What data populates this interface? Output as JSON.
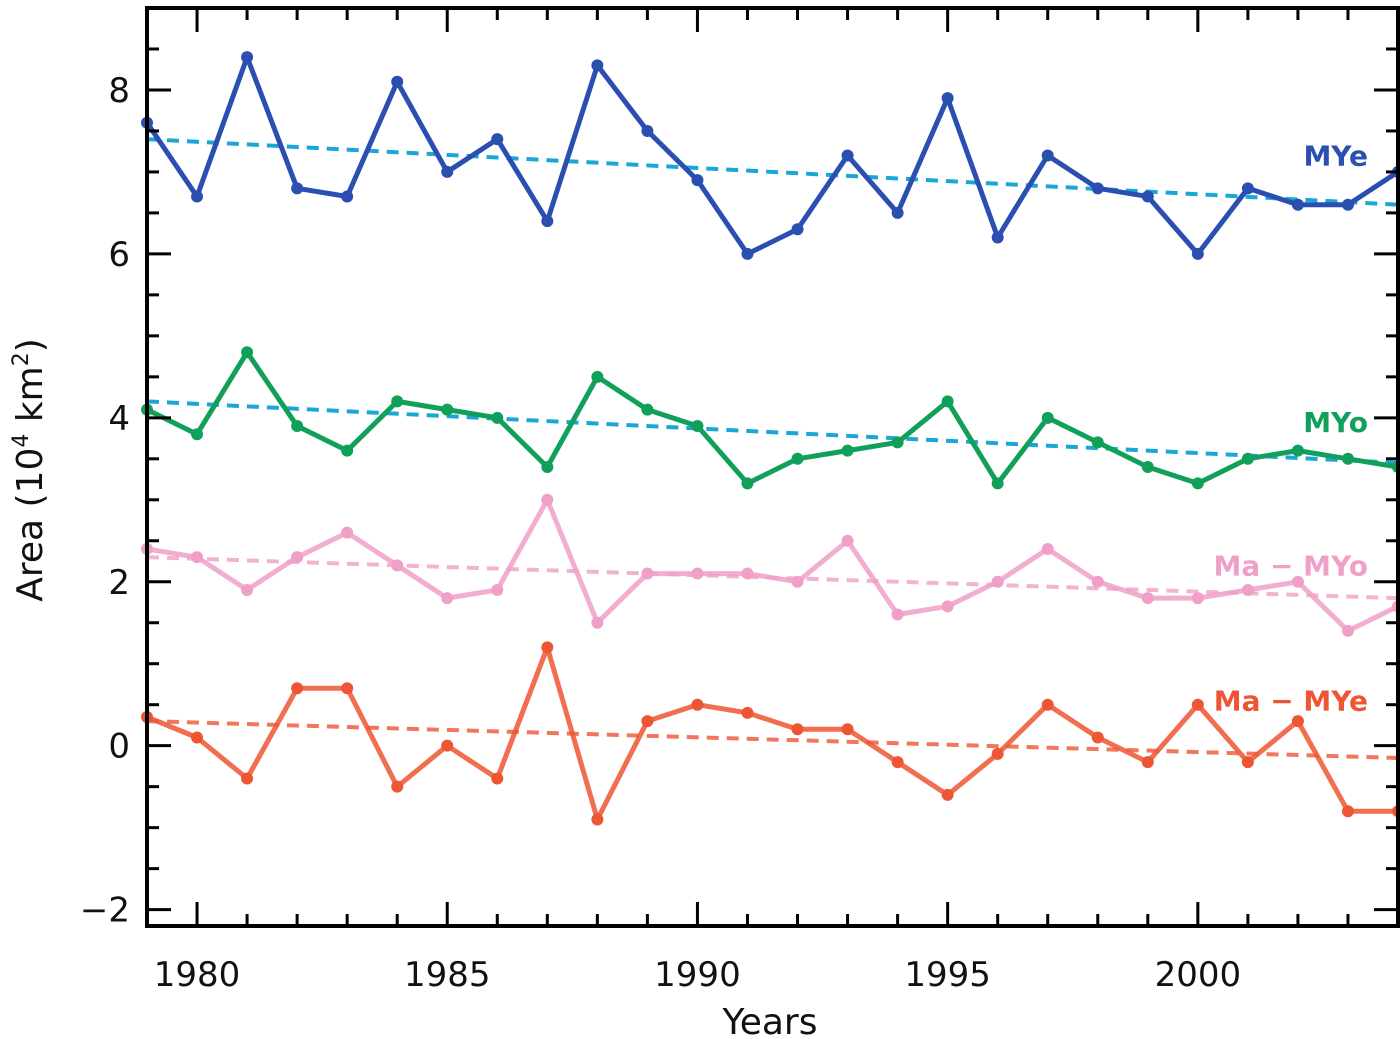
{
  "chart_data": {
    "type": "line",
    "xlabel": "Years",
    "ylabel_main": "Area (10",
    "ylabel_exp1": "4",
    "ylabel_unit": " km",
    "ylabel_exp2": "2",
    "ylabel_close": ")",
    "xlim": [
      1979,
      2004
    ],
    "ylim": [
      -2.2,
      9
    ],
    "xticks": [
      1980,
      1985,
      1990,
      1995,
      2000
    ],
    "yticks": [
      -2,
      0,
      2,
      4,
      6,
      8
    ],
    "ytick_labels": [
      "−2",
      "0",
      "2",
      "4",
      "6",
      "8"
    ],
    "grid": false,
    "series": [
      {
        "name": "MYe",
        "color": "#2a4fb0",
        "trend_color": "#1aa6d6",
        "x": [
          1979,
          1980,
          1981,
          1982,
          1983,
          1984,
          1985,
          1986,
          1987,
          1988,
          1989,
          1990,
          1991,
          1992,
          1993,
          1994,
          1995,
          1996,
          1997,
          1998,
          1999,
          2000,
          2001,
          2002,
          2003,
          2004
        ],
        "y": [
          7.6,
          6.7,
          8.4,
          6.8,
          6.7,
          8.1,
          7.0,
          7.4,
          6.4,
          8.3,
          7.5,
          6.9,
          6.0,
          6.3,
          7.2,
          6.5,
          7.9,
          6.2,
          7.2,
          6.8,
          6.7,
          6.0,
          6.8,
          6.6,
          6.6,
          7.0
        ],
        "trend": [
          7.4,
          6.6
        ]
      },
      {
        "name": "MYo",
        "color": "#10a05a",
        "trend_color": "#1aa6d6",
        "x": [
          1979,
          1980,
          1981,
          1982,
          1983,
          1984,
          1985,
          1986,
          1987,
          1988,
          1989,
          1990,
          1991,
          1992,
          1993,
          1994,
          1995,
          1996,
          1997,
          1998,
          1999,
          2000,
          2001,
          2002,
          2003,
          2004
        ],
        "y": [
          4.1,
          3.8,
          4.8,
          3.9,
          3.6,
          4.2,
          4.1,
          4.0,
          3.4,
          4.5,
          4.1,
          3.9,
          3.2,
          3.5,
          3.6,
          3.7,
          4.2,
          3.2,
          4.0,
          3.7,
          3.4,
          3.2,
          3.5,
          3.6,
          3.5,
          3.4
        ],
        "trend": [
          4.2,
          3.45
        ]
      },
      {
        "name": "Ma − MYo",
        "color": "#f0a0c8",
        "trend_color": "#f0a0c8",
        "x": [
          1979,
          1980,
          1981,
          1982,
          1983,
          1984,
          1985,
          1986,
          1987,
          1988,
          1989,
          1990,
          1991,
          1992,
          1993,
          1994,
          1995,
          1996,
          1997,
          1998,
          1999,
          2000,
          2001,
          2002,
          2003,
          2004
        ],
        "y": [
          2.4,
          2.3,
          1.9,
          2.3,
          2.6,
          2.2,
          1.8,
          1.9,
          3.0,
          1.5,
          2.1,
          2.1,
          2.1,
          2.0,
          2.5,
          1.6,
          1.7,
          2.0,
          2.4,
          2.0,
          1.8,
          1.8,
          1.9,
          2.0,
          1.4,
          1.7
        ],
        "trend": [
          2.3,
          1.8
        ]
      },
      {
        "name": "Ma − MYe",
        "color": "#ee5533",
        "trend_color": "#ee5533",
        "x": [
          1979,
          1980,
          1981,
          1982,
          1983,
          1984,
          1985,
          1986,
          1987,
          1988,
          1989,
          1990,
          1991,
          1992,
          1993,
          1994,
          1995,
          1996,
          1997,
          1998,
          1999,
          2000,
          2001,
          2002,
          2003,
          2004
        ],
        "y": [
          0.35,
          0.1,
          -0.4,
          0.7,
          0.7,
          -0.5,
          0.0,
          -0.4,
          1.2,
          -0.9,
          0.3,
          0.5,
          0.4,
          0.2,
          0.2,
          -0.2,
          -0.6,
          -0.1,
          0.5,
          0.1,
          -0.2,
          0.5,
          -0.2,
          0.3,
          -0.8,
          -0.8
        ],
        "trend": [
          0.3,
          -0.15
        ]
      }
    ]
  }
}
